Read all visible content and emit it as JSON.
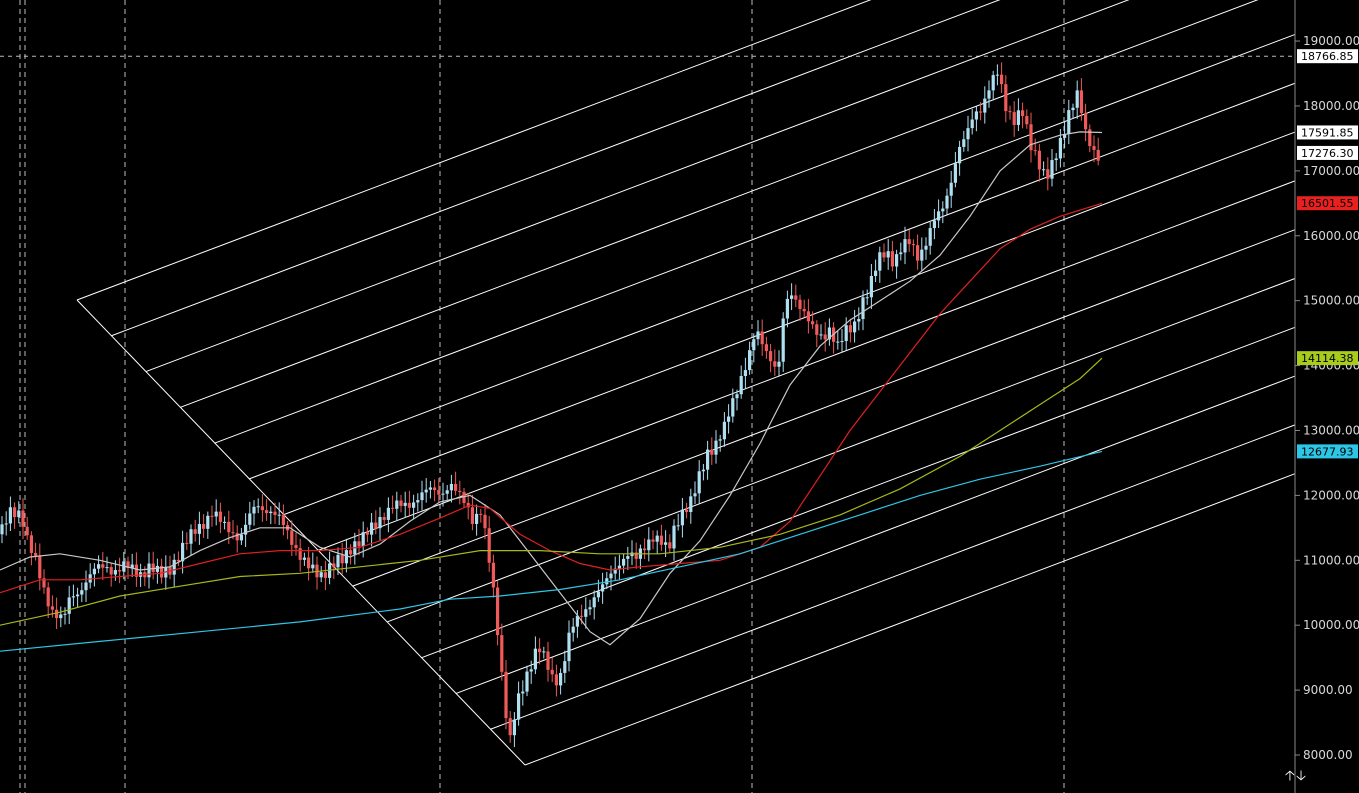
{
  "chart_data": {
    "type": "candlestick",
    "title": "",
    "xlabel": "",
    "ylabel": "",
    "ylim": [
      7600,
      19450
    ],
    "y_ticks": [
      "8000.00",
      "9000.00",
      "10000.00",
      "11000.00",
      "12000.00",
      "13000.00",
      "14000.00",
      "15000.00",
      "16000.00",
      "17000.00",
      "18000.00",
      "19000.00"
    ],
    "y_tick_values": [
      8000,
      9000,
      10000,
      11000,
      12000,
      13000,
      14000,
      15000,
      16000,
      17000,
      18000,
      19000
    ],
    "crosshair_price": 18766.85,
    "price_tags": [
      {
        "label": "18766.85",
        "value": 18766.85,
        "bg": "#ffffff",
        "fg": "#000000"
      },
      {
        "label": "17591.85",
        "value": 17591.85,
        "bg": "#ffffff",
        "fg": "#000000"
      },
      {
        "label": "17276.30",
        "value": 17276.3,
        "bg": "#ffffff",
        "fg": "#000000"
      },
      {
        "label": "16501.55",
        "value": 16501.55,
        "bg": "#e82020",
        "fg": "#000000"
      },
      {
        "label": "14114.38",
        "value": 14114.38,
        "bg": "#a8cc1c",
        "fg": "#000000"
      },
      {
        "label": "12677.93",
        "value": 12677.93,
        "bg": "#2ec6e6",
        "fg": "#000000"
      }
    ],
    "candle_close_path": [
      [
        0,
        11400
      ],
      [
        10,
        11700
      ],
      [
        18,
        11750
      ],
      [
        22,
        11700
      ],
      [
        28,
        11300
      ],
      [
        35,
        11000
      ],
      [
        42,
        10600
      ],
      [
        50,
        10300
      ],
      [
        58,
        10150
      ],
      [
        64,
        10100
      ],
      [
        70,
        10400
      ],
      [
        78,
        10500
      ],
      [
        86,
        10700
      ],
      [
        95,
        10850
      ],
      [
        105,
        10900
      ],
      [
        115,
        10850
      ],
      [
        125,
        10900
      ],
      [
        140,
        10800
      ],
      [
        150,
        10900
      ],
      [
        160,
        10750
      ],
      [
        170,
        10900
      ],
      [
        180,
        11100
      ],
      [
        188,
        11300
      ],
      [
        196,
        11500
      ],
      [
        204,
        11600
      ],
      [
        212,
        11700
      ],
      [
        220,
        11600
      ],
      [
        230,
        11500
      ],
      [
        240,
        11300
      ],
      [
        248,
        11600
      ],
      [
        256,
        11900
      ],
      [
        264,
        11800
      ],
      [
        272,
        11700
      ],
      [
        282,
        11600
      ],
      [
        290,
        11400
      ],
      [
        298,
        11100
      ],
      [
        306,
        10900
      ],
      [
        314,
        10850
      ],
      [
        322,
        10800
      ],
      [
        332,
        10900
      ],
      [
        342,
        11000
      ],
      [
        352,
        11250
      ],
      [
        362,
        11300
      ],
      [
        372,
        11500
      ],
      [
        382,
        11700
      ],
      [
        392,
        11800
      ],
      [
        402,
        11850
      ],
      [
        412,
        11900
      ],
      [
        422,
        12000
      ],
      [
        432,
        12100
      ],
      [
        442,
        12050
      ],
      [
        450,
        12150
      ],
      [
        458,
        12000
      ],
      [
        466,
        11900
      ],
      [
        474,
        11600
      ],
      [
        480,
        11800
      ],
      [
        486,
        11300
      ],
      [
        492,
        10700
      ],
      [
        498,
        9900
      ],
      [
        504,
        8900
      ],
      [
        510,
        8200
      ],
      [
        516,
        8700
      ],
      [
        522,
        9000
      ],
      [
        530,
        9400
      ],
      [
        538,
        9700
      ],
      [
        546,
        9400
      ],
      [
        554,
        9100
      ],
      [
        562,
        9300
      ],
      [
        568,
        9800
      ],
      [
        574,
        10000
      ],
      [
        580,
        10100
      ],
      [
        588,
        10300
      ],
      [
        596,
        10500
      ],
      [
        604,
        10600
      ],
      [
        612,
        10800
      ],
      [
        620,
        11000
      ],
      [
        628,
        11100
      ],
      [
        636,
        11000
      ],
      [
        644,
        11200
      ],
      [
        652,
        11400
      ],
      [
        660,
        11300
      ],
      [
        668,
        11100
      ],
      [
        676,
        11600
      ],
      [
        684,
        11800
      ],
      [
        692,
        11900
      ],
      [
        700,
        12300
      ],
      [
        708,
        12700
      ],
      [
        716,
        12800
      ],
      [
        724,
        13000
      ],
      [
        732,
        13400
      ],
      [
        740,
        13800
      ],
      [
        748,
        14100
      ],
      [
        756,
        14500
      ],
      [
        764,
        14300
      ],
      [
        772,
        14100
      ],
      [
        778,
        13900
      ],
      [
        784,
        14800
      ],
      [
        790,
        15100
      ],
      [
        798,
        15000
      ],
      [
        806,
        14800
      ],
      [
        814,
        14500
      ],
      [
        822,
        14400
      ],
      [
        830,
        14600
      ],
      [
        838,
        14300
      ],
      [
        846,
        14500
      ],
      [
        854,
        14600
      ],
      [
        862,
        15000
      ],
      [
        870,
        15200
      ],
      [
        878,
        15600
      ],
      [
        886,
        15800
      ],
      [
        894,
        15600
      ],
      [
        902,
        15800
      ],
      [
        910,
        15900
      ],
      [
        918,
        15700
      ],
      [
        926,
        15900
      ],
      [
        934,
        16200
      ],
      [
        942,
        16400
      ],
      [
        950,
        16800
      ],
      [
        958,
        17300
      ],
      [
        966,
        17500
      ],
      [
        974,
        17900
      ],
      [
        982,
        18000
      ],
      [
        990,
        18300
      ],
      [
        998,
        18500
      ],
      [
        1006,
        18000
      ],
      [
        1014,
        17800
      ],
      [
        1022,
        17900
      ],
      [
        1030,
        17400
      ],
      [
        1038,
        17200
      ],
      [
        1046,
        16900
      ],
      [
        1054,
        17100
      ],
      [
        1062,
        17500
      ],
      [
        1070,
        18000
      ],
      [
        1078,
        18200
      ],
      [
        1086,
        17500
      ],
      [
        1094,
        17300
      ],
      [
        1102,
        17200
      ]
    ],
    "moving_averages": [
      {
        "color": "#c8c8c8",
        "points": [
          [
            0,
            10850
          ],
          [
            30,
            11050
          ],
          [
            60,
            11100
          ],
          [
            100,
            11000
          ],
          [
            140,
            10850
          ],
          [
            170,
            10900
          ],
          [
            200,
            11150
          ],
          [
            230,
            11350
          ],
          [
            260,
            11500
          ],
          [
            290,
            11500
          ],
          [
            320,
            11200
          ],
          [
            350,
            11050
          ],
          [
            380,
            11250
          ],
          [
            410,
            11600
          ],
          [
            440,
            11900
          ],
          [
            470,
            12000
          ],
          [
            500,
            11700
          ],
          [
            530,
            11100
          ],
          [
            560,
            10500
          ],
          [
            590,
            9900
          ],
          [
            610,
            9700
          ],
          [
            640,
            10100
          ],
          [
            670,
            10800
          ],
          [
            700,
            11300
          ],
          [
            730,
            12000
          ],
          [
            760,
            12800
          ],
          [
            790,
            13700
          ],
          [
            820,
            14300
          ],
          [
            850,
            14700
          ],
          [
            880,
            15000
          ],
          [
            910,
            15300
          ],
          [
            940,
            15700
          ],
          [
            970,
            16300
          ],
          [
            1000,
            17000
          ],
          [
            1030,
            17400
          ],
          [
            1060,
            17550
          ],
          [
            1080,
            17600
          ],
          [
            1102,
            17591
          ]
        ]
      },
      {
        "color": "#e02020",
        "points": [
          [
            0,
            10500
          ],
          [
            40,
            10700
          ],
          [
            80,
            10700
          ],
          [
            120,
            10750
          ],
          [
            160,
            10800
          ],
          [
            200,
            10950
          ],
          [
            240,
            11100
          ],
          [
            280,
            11150
          ],
          [
            320,
            11150
          ],
          [
            360,
            11200
          ],
          [
            400,
            11400
          ],
          [
            440,
            11650
          ],
          [
            470,
            11850
          ],
          [
            490,
            11800
          ],
          [
            520,
            11400
          ],
          [
            550,
            11150
          ],
          [
            580,
            10950
          ],
          [
            610,
            10850
          ],
          [
            640,
            10900
          ],
          [
            680,
            10950
          ],
          [
            720,
            11000
          ],
          [
            760,
            11200
          ],
          [
            790,
            11600
          ],
          [
            820,
            12300
          ],
          [
            850,
            13000
          ],
          [
            880,
            13600
          ],
          [
            910,
            14200
          ],
          [
            940,
            14800
          ],
          [
            970,
            15300
          ],
          [
            1000,
            15800
          ],
          [
            1030,
            16100
          ],
          [
            1060,
            16300
          ],
          [
            1102,
            16501
          ]
        ]
      },
      {
        "color": "#a8b818",
        "points": [
          [
            0,
            10000
          ],
          [
            60,
            10200
          ],
          [
            120,
            10450
          ],
          [
            180,
            10600
          ],
          [
            240,
            10750
          ],
          [
            300,
            10800
          ],
          [
            360,
            10900
          ],
          [
            420,
            11000
          ],
          [
            480,
            11150
          ],
          [
            540,
            11150
          ],
          [
            600,
            11100
          ],
          [
            660,
            11100
          ],
          [
            720,
            11200
          ],
          [
            780,
            11400
          ],
          [
            840,
            11700
          ],
          [
            900,
            12100
          ],
          [
            960,
            12600
          ],
          [
            1000,
            13000
          ],
          [
            1040,
            13400
          ],
          [
            1080,
            13800
          ],
          [
            1102,
            14114
          ]
        ]
      },
      {
        "color": "#2ec6e6",
        "points": [
          [
            0,
            9600
          ],
          [
            100,
            9750
          ],
          [
            200,
            9900
          ],
          [
            300,
            10050
          ],
          [
            400,
            10250
          ],
          [
            450,
            10400
          ],
          [
            500,
            10450
          ],
          [
            560,
            10550
          ],
          [
            620,
            10700
          ],
          [
            680,
            10900
          ],
          [
            740,
            11100
          ],
          [
            800,
            11400
          ],
          [
            860,
            11700
          ],
          [
            920,
            12000
          ],
          [
            980,
            12250
          ],
          [
            1040,
            12450
          ],
          [
            1102,
            12677
          ]
        ]
      }
    ]
  },
  "ui": {
    "scroll_up": "🡡",
    "scroll_down": "🡣"
  }
}
